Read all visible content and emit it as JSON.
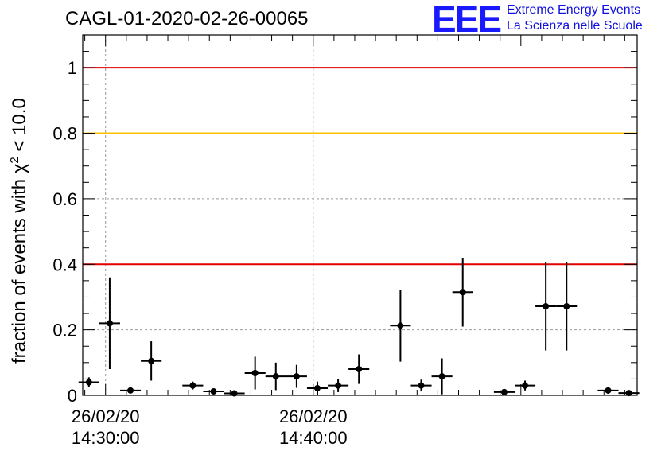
{
  "header": {
    "title": "CAGL-01-2020-02-26-00065",
    "logo_text": "EEE",
    "logo_line1": "Extreme Energy Events",
    "logo_line2": "La Scienza nelle Scuole"
  },
  "chart_data": {
    "type": "scatter",
    "ylabel_main": "fraction of events with ",
    "ylabel_chi": "χ",
    "ylabel_sup": "2",
    "ylabel_tail": " < 10.0",
    "ylim": [
      0,
      1.1
    ],
    "yticks": [
      0,
      0.2,
      0.4,
      0.6,
      0.8,
      1
    ],
    "ytick_labels": [
      "0",
      "0.2",
      "0.4",
      "0.6",
      "0.8",
      "1"
    ],
    "x_range_minutes": [
      -21.1,
      5.6
    ],
    "x_ticks": [
      {
        "t": -20,
        "date": "26/02/20",
        "time": "14:30:00"
      },
      {
        "t": -10,
        "date": "26/02/20",
        "time": "14:40:00"
      }
    ],
    "reference_lines": [
      {
        "y": 1.0,
        "color": "#e00000"
      },
      {
        "y": 0.8,
        "color": "#ffc000"
      },
      {
        "y": 0.4,
        "color": "#e00000"
      }
    ],
    "grid": true,
    "points": [
      {
        "x": -20.8,
        "y": 0.04,
        "err": 0.015
      },
      {
        "x": -19.8,
        "y": 0.22,
        "err": 0.14
      },
      {
        "x": -18.8,
        "y": 0.015,
        "err": 0.008
      },
      {
        "x": -17.8,
        "y": 0.105,
        "err": 0.06
      },
      {
        "x": -15.8,
        "y": 0.03,
        "err": 0.012
      },
      {
        "x": -14.8,
        "y": 0.012,
        "err": 0.006
      },
      {
        "x": -13.8,
        "y": 0.006,
        "err": 0.004
      },
      {
        "x": -12.8,
        "y": 0.068,
        "err": 0.05
      },
      {
        "x": -11.8,
        "y": 0.058,
        "err": 0.042
      },
      {
        "x": -10.8,
        "y": 0.058,
        "err": 0.035
      },
      {
        "x": -9.8,
        "y": 0.022,
        "err": 0.02
      },
      {
        "x": -8.8,
        "y": 0.03,
        "err": 0.02
      },
      {
        "x": -7.8,
        "y": 0.08,
        "err": 0.045
      },
      {
        "x": -5.8,
        "y": 0.213,
        "err": 0.11
      },
      {
        "x": -4.8,
        "y": 0.03,
        "err": 0.018
      },
      {
        "x": -3.8,
        "y": 0.058,
        "err": 0.055
      },
      {
        "x": -2.8,
        "y": 0.315,
        "err": 0.105
      },
      {
        "x": -0.8,
        "y": 0.01,
        "err": 0.006
      },
      {
        "x": 0.2,
        "y": 0.03,
        "err": 0.015
      },
      {
        "x": 1.2,
        "y": 0.272,
        "err": 0.135
      },
      {
        "x": 2.2,
        "y": 0.272,
        "err": 0.135
      },
      {
        "x": 4.2,
        "y": 0.015,
        "err": 0.01
      },
      {
        "x": 5.2,
        "y": 0.007,
        "err": 0.005
      }
    ],
    "x_halfwidth": 0.5
  }
}
